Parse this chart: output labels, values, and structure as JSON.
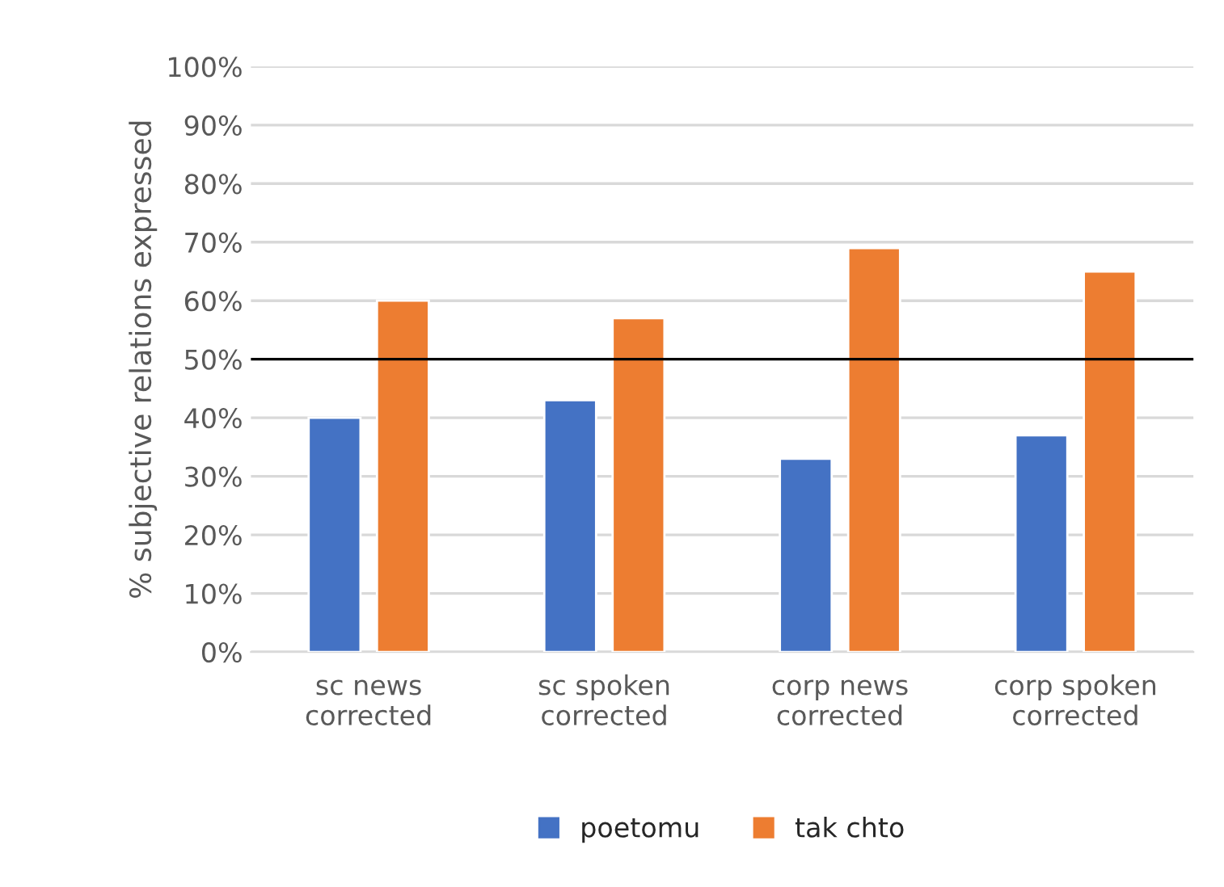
{
  "chart_data": {
    "type": "bar",
    "ylabel": "% subjective relations expressed",
    "categories": [
      "sc news\ncorrected",
      "sc spoken\ncorrected",
      "corp news\ncorrected",
      "corp spoken\ncorrected"
    ],
    "series": [
      {
        "name": "poetomu",
        "color": "#4472c4",
        "values": [
          40,
          43,
          33,
          37
        ]
      },
      {
        "name": "tak chto",
        "color": "#ed7d31",
        "values": [
          60,
          57,
          69,
          65
        ]
      }
    ],
    "ylim": [
      0,
      100
    ],
    "yticks": [
      {
        "value": 0,
        "label": "0%"
      },
      {
        "value": 10,
        "label": "10%"
      },
      {
        "value": 20,
        "label": "20%"
      },
      {
        "value": 30,
        "label": "30%"
      },
      {
        "value": 40,
        "label": "40%"
      },
      {
        "value": 50,
        "label": "50%"
      },
      {
        "value": 60,
        "label": "60%"
      },
      {
        "value": 70,
        "label": "70%"
      },
      {
        "value": 80,
        "label": "80%"
      },
      {
        "value": 90,
        "label": "90%"
      },
      {
        "value": 100,
        "label": "100%"
      }
    ],
    "ref_lines": [
      {
        "axis": "y",
        "value": 50,
        "color": "#000000"
      }
    ],
    "grid": "y",
    "legend": "bottom"
  }
}
